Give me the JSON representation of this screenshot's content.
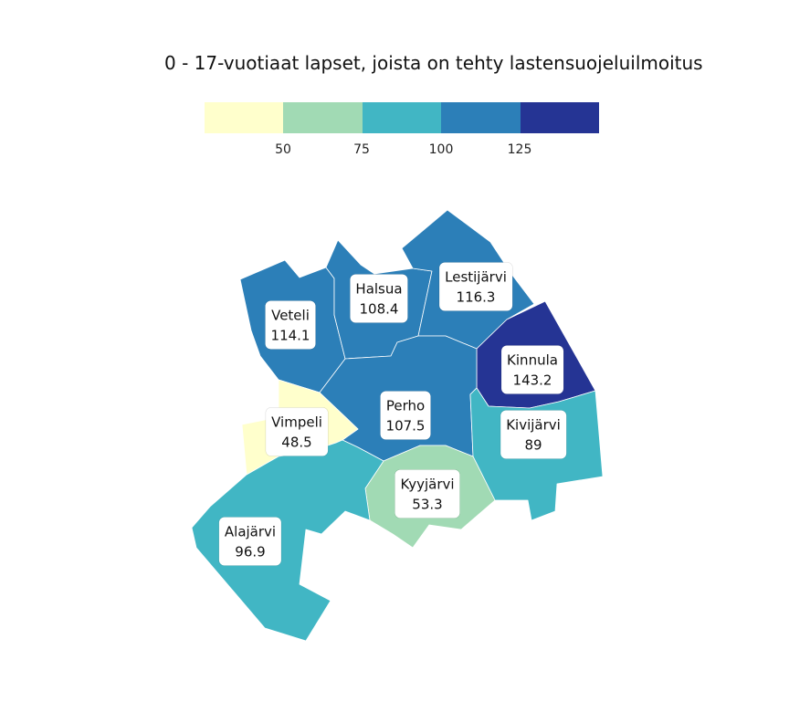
{
  "map": {
    "title": "0 - 17-vuotiaat lapset, joista on tehty lastensuojeluilmoitus",
    "legend": {
      "colors": [
        "#ffffcc",
        "#a1dab4",
        "#41b6c4",
        "#2c7fb8",
        "#253494"
      ],
      "ticks": [
        "50",
        "75",
        "100",
        "125"
      ]
    },
    "municipalities": [
      {
        "name": "Veteli",
        "value": "114.1",
        "color": "#2c7fb8"
      },
      {
        "name": "Halsua",
        "value": "108.4",
        "color": "#2c7fb8"
      },
      {
        "name": "Lestijärvi",
        "value": "116.3",
        "color": "#2c7fb8"
      },
      {
        "name": "Kinnula",
        "value": "143.2",
        "color": "#253494"
      },
      {
        "name": "Perho",
        "value": "107.5",
        "color": "#2c7fb8"
      },
      {
        "name": "Vimpeli",
        "value": "48.5",
        "color": "#ffffcc"
      },
      {
        "name": "Kivijärvi",
        "value": "89",
        "color": "#41b6c4"
      },
      {
        "name": "Kyyjärvi",
        "value": "53.3",
        "color": "#a1dab4"
      },
      {
        "name": "Alajärvi",
        "value": "96.9",
        "color": "#41b6c4"
      }
    ]
  }
}
